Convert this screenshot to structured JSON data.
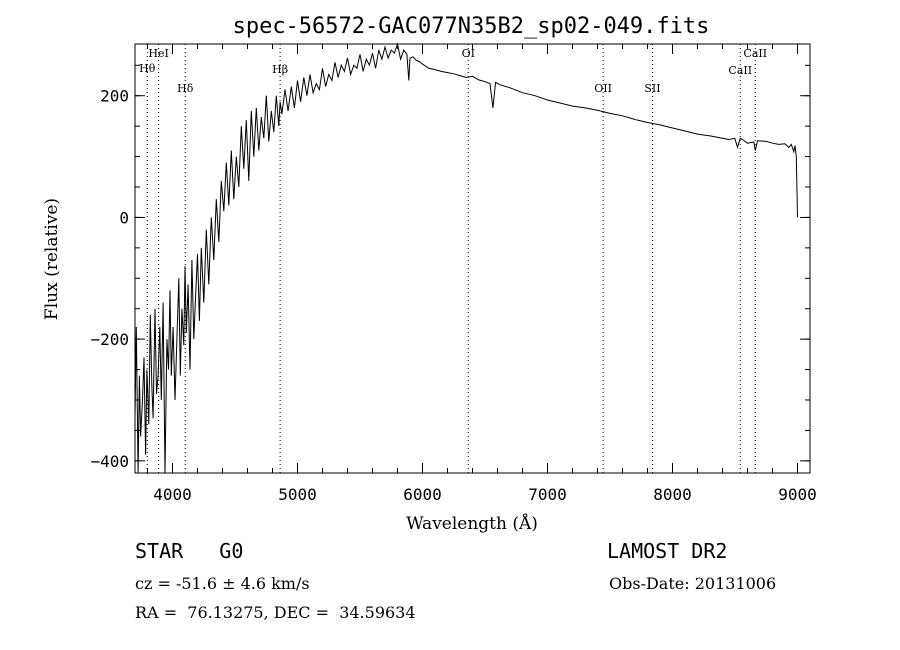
{
  "chart_data": {
    "type": "line",
    "title": "spec-56572-GAC077N35B2_sp02-049.fits",
    "xlabel": "Wavelength (Å)",
    "ylabel": "Flux (relative)",
    "xlim": [
      3700,
      9100
    ],
    "ylim": [
      -420,
      285
    ],
    "grid": false,
    "xticks": [
      4000,
      5000,
      6000,
      7000,
      8000,
      9000
    ],
    "yticks": [
      -400,
      -200,
      0,
      200
    ],
    "x_minor_step": 200,
    "y_minor_step": 50,
    "lines": [
      {
        "label": "Hθ",
        "x": 3798,
        "label_y": 72
      },
      {
        "label": "HeI",
        "x": 3889,
        "label_y": 57
      },
      {
        "label": "Hδ",
        "x": 4102,
        "label_y": 92
      },
      {
        "label": "Hβ",
        "x": 4861,
        "label_y": 73
      },
      {
        "label": "OI",
        "x": 6366,
        "label_y": 57
      },
      {
        "label": "OII",
        "x": 7445,
        "label_y": 92
      },
      {
        "label": "SII",
        "x": 7840,
        "label_y": 92
      },
      {
        "label": "CaII",
        "x": 8542,
        "label_y": 74
      },
      {
        "label": "CaII",
        "x": 8662,
        "label_y": 57
      }
    ],
    "series": [
      {
        "x": [
          3700,
          3710,
          3725,
          3735,
          3745,
          3760,
          3772,
          3785,
          3795,
          3810,
          3822,
          3835,
          3845,
          3860,
          3872,
          3885,
          3898,
          3910,
          3925,
          3940,
          3955,
          3968,
          3980,
          3990,
          4005,
          4020,
          4035,
          4050,
          4062,
          4075,
          4090,
          4100,
          4110,
          4125,
          4140,
          4155,
          4170,
          4185,
          4200,
          4215,
          4230,
          4250,
          4270,
          4290,
          4310,
          4330,
          4350,
          4370,
          4390,
          4410,
          4430,
          4450,
          4470,
          4490,
          4510,
          4530,
          4550,
          4570,
          4590,
          4610,
          4630,
          4650,
          4670,
          4690,
          4710,
          4730,
          4750,
          4770,
          4790,
          4810,
          4830,
          4850,
          4861,
          4875,
          4900,
          4925,
          4950,
          4975,
          5000,
          5025,
          5050,
          5075,
          5100,
          5125,
          5150,
          5175,
          5200,
          5225,
          5250,
          5275,
          5300,
          5325,
          5350,
          5375,
          5400,
          5425,
          5450,
          5475,
          5500,
          5525,
          5550,
          5575,
          5600,
          5625,
          5650,
          5675,
          5700,
          5725,
          5750,
          5775,
          5800,
          5825,
          5850,
          5875,
          5890,
          5900,
          5925,
          5950,
          5975,
          6000,
          6050,
          6100,
          6150,
          6200,
          6250,
          6300,
          6350,
          6400,
          6450,
          6500,
          6540,
          6563,
          6585,
          6620,
          6700,
          6800,
          6900,
          7000,
          7100,
          7200,
          7300,
          7400,
          7500,
          7600,
          7700,
          7800,
          7900,
          8000,
          8100,
          8200,
          8300,
          8400,
          8450,
          8498,
          8520,
          8542,
          8560,
          8600,
          8650,
          8662,
          8680,
          8750,
          8800,
          8850,
          8900,
          8930,
          8950,
          8970,
          8980,
          8990,
          9000
        ],
        "y": [
          -330,
          -180,
          -420,
          -260,
          -360,
          -300,
          -230,
          -390,
          -250,
          -340,
          -160,
          -280,
          -330,
          -150,
          -290,
          -260,
          -180,
          -300,
          -140,
          -420,
          -200,
          -250,
          -120,
          -260,
          -180,
          -300,
          -200,
          -100,
          -260,
          -150,
          -210,
          -80,
          -190,
          -110,
          -250,
          -70,
          -200,
          -130,
          -60,
          -170,
          -50,
          -140,
          -20,
          -110,
          0,
          -70,
          30,
          -40,
          60,
          10,
          90,
          20,
          110,
          30,
          100,
          50,
          150,
          80,
          160,
          60,
          175,
          100,
          180,
          110,
          165,
          130,
          200,
          125,
          175,
          140,
          200,
          150,
          190,
          170,
          210,
          175,
          215,
          180,
          225,
          190,
          230,
          200,
          235,
          205,
          220,
          210,
          245,
          215,
          235,
          225,
          255,
          230,
          250,
          240,
          262,
          235,
          250,
          245,
          268,
          240,
          260,
          250,
          270,
          245,
          275,
          260,
          280,
          262,
          275,
          270,
          285,
          260,
          275,
          268,
          225,
          262,
          264,
          258,
          256,
          252,
          245,
          243,
          240,
          238,
          236,
          233,
          230,
          232,
          226,
          223,
          220,
          180,
          222,
          218,
          213,
          205,
          200,
          193,
          188,
          183,
          180,
          176,
          171,
          167,
          161,
          156,
          152,
          147,
          142,
          137,
          134,
          130,
          128,
          130,
          115,
          130,
          128,
          122,
          124,
          110,
          126,
          125,
          122,
          120,
          121,
          115,
          120,
          108,
          118,
          100,
          0
        ]
      }
    ]
  },
  "info": {
    "object_class": "STAR   G0",
    "survey": "LAMOST DR2",
    "redshift": "cz = -51.6 ± 4.6 km/s",
    "obs_date": "Obs-Date: 20131006",
    "coords": "RA =  76.13275, DEC =  34.59634"
  }
}
